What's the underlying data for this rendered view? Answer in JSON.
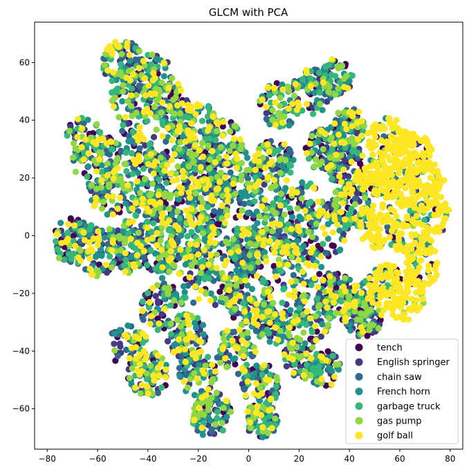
{
  "chart_data": {
    "type": "scatter",
    "title": "GLCM with PCA",
    "xlabel": "",
    "ylabel": "",
    "xlim": [
      -85,
      85
    ],
    "ylim": [
      -74,
      74
    ],
    "xticks": [
      -80,
      -60,
      -40,
      -20,
      0,
      20,
      40,
      60,
      80
    ],
    "yticks": [
      -60,
      -40,
      -20,
      0,
      20,
      40,
      60
    ],
    "grid": false,
    "legend_position": "bottom-right",
    "series": [
      {
        "name": "tench",
        "color": "#440154"
      },
      {
        "name": "English springer",
        "color": "#443983"
      },
      {
        "name": "chain saw",
        "color": "#31688e"
      },
      {
        "name": "French horn",
        "color": "#21918c"
      },
      {
        "name": "garbage truck",
        "color": "#35b779"
      },
      {
        "name": "gas pump",
        "color": "#90d743"
      },
      {
        "name": "golf ball",
        "color": "#fde725"
      }
    ],
    "clusters": [
      {
        "cx": -50,
        "cy": 60,
        "r": 5
      },
      {
        "cx": -45,
        "cy": 48,
        "r": 6
      },
      {
        "cx": -38,
        "cy": 55,
        "r": 5
      },
      {
        "cx": -30,
        "cy": 45,
        "r": 5
      },
      {
        "cx": -48,
        "cy": 30,
        "r": 6
      },
      {
        "cx": -60,
        "cy": 25,
        "r": 6
      },
      {
        "cx": -65,
        "cy": 33,
        "r": 5
      },
      {
        "cx": -55,
        "cy": 15,
        "r": 5
      },
      {
        "cx": -40,
        "cy": 20,
        "r": 6
      },
      {
        "cx": -30,
        "cy": 30,
        "r": 6
      },
      {
        "cx": -20,
        "cy": 38,
        "r": 5
      },
      {
        "cx": -10,
        "cy": 32,
        "r": 5
      },
      {
        "cx": -5,
        "cy": 20,
        "r": 6
      },
      {
        "cx": -20,
        "cy": 22,
        "r": 5
      },
      {
        "cx": -30,
        "cy": 10,
        "r": 6
      },
      {
        "cx": -42,
        "cy": 5,
        "r": 5
      },
      {
        "cx": -70,
        "cy": -2,
        "r": 5
      },
      {
        "cx": -60,
        "cy": -5,
        "r": 6
      },
      {
        "cx": -48,
        "cy": -5,
        "r": 5
      },
      {
        "cx": -35,
        "cy": -5,
        "r": 5
      },
      {
        "cx": -22,
        "cy": -2,
        "r": 6
      },
      {
        "cx": -10,
        "cy": 5,
        "r": 6
      },
      {
        "cx": 5,
        "cy": 10,
        "r": 6
      },
      {
        "cx": 10,
        "cy": 25,
        "r": 5
      },
      {
        "cx": 20,
        "cy": 10,
        "r": 6
      },
      {
        "cx": 30,
        "cy": 2,
        "r": 6
      },
      {
        "cx": 40,
        "cy": 10,
        "r": 5
      },
      {
        "cx": 38,
        "cy": 25,
        "r": 5
      },
      {
        "cx": 30,
        "cy": 30,
        "r": 5
      },
      {
        "cx": 25,
        "cy": 50,
        "r": 5
      },
      {
        "cx": 35,
        "cy": 55,
        "r": 4
      },
      {
        "cx": 12,
        "cy": 45,
        "r": 5
      },
      {
        "cx": 40,
        "cy": 38,
        "r": 4
      },
      {
        "cx": 55,
        "cy": 33,
        "r": 5
      },
      {
        "cx": 65,
        "cy": 28,
        "r": 5
      },
      {
        "cx": 70,
        "cy": 18,
        "r": 5
      },
      {
        "cx": 72,
        "cy": 8,
        "r": 5
      },
      {
        "cx": 60,
        "cy": 18,
        "r": 5
      },
      {
        "cx": 50,
        "cy": 20,
        "r": 4
      },
      {
        "cx": 52,
        "cy": 3,
        "r": 5
      },
      {
        "cx": 65,
        "cy": 0,
        "r": 5
      },
      {
        "cx": 68,
        "cy": -10,
        "r": 5
      },
      {
        "cx": 55,
        "cy": -18,
        "r": 5
      },
      {
        "cx": 62,
        "cy": -22,
        "r": 5
      },
      {
        "cx": 45,
        "cy": -28,
        "r": 5
      },
      {
        "cx": 35,
        "cy": -20,
        "r": 5
      },
      {
        "cx": 20,
        "cy": -12,
        "r": 6
      },
      {
        "cx": 25,
        "cy": -28,
        "r": 5
      },
      {
        "cx": 10,
        "cy": -30,
        "r": 5
      },
      {
        "cx": 0,
        "cy": -22,
        "r": 6
      },
      {
        "cx": -10,
        "cy": -15,
        "r": 6
      },
      {
        "cx": -25,
        "cy": -15,
        "r": 6
      },
      {
        "cx": -35,
        "cy": -25,
        "r": 5
      },
      {
        "cx": -25,
        "cy": -35,
        "r": 5
      },
      {
        "cx": -48,
        "cy": -38,
        "r": 5
      },
      {
        "cx": -40,
        "cy": -48,
        "r": 5
      },
      {
        "cx": -20,
        "cy": -48,
        "r": 5
      },
      {
        "cx": -15,
        "cy": -62,
        "r": 5
      },
      {
        "cx": -5,
        "cy": -40,
        "r": 5
      },
      {
        "cx": 5,
        "cy": -52,
        "r": 5
      },
      {
        "cx": 5,
        "cy": -64,
        "r": 4
      },
      {
        "cx": 22,
        "cy": -42,
        "r": 5
      },
      {
        "cx": 30,
        "cy": -46,
        "r": 4
      },
      {
        "cx": 45,
        "cy": -22,
        "r": 4
      },
      {
        "cx": 0,
        "cy": -5,
        "r": 5
      },
      {
        "cx": 12,
        "cy": -3,
        "r": 5
      },
      {
        "cx": -15,
        "cy": 15,
        "r": 5
      }
    ]
  }
}
